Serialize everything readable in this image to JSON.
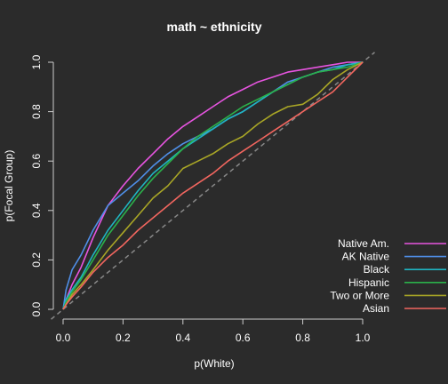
{
  "chart_data": {
    "type": "line",
    "title": "math ~ ethnicity",
    "xlabel": "p(White)",
    "ylabel": "p(Focal Group)",
    "xlim": [
      0,
      1
    ],
    "ylim": [
      0,
      1
    ],
    "x_ticks": [
      "0.0",
      "0.2",
      "0.4",
      "0.6",
      "0.8",
      "1.0"
    ],
    "y_ticks": [
      "0.0",
      "0.2",
      "0.4",
      "0.6",
      "0.8",
      "1.0"
    ],
    "legend_position": "bottom-right",
    "reference_line": {
      "style": "dashed",
      "color": "#888888",
      "from": [
        0,
        0
      ],
      "to": [
        1,
        1
      ]
    },
    "series": [
      {
        "name": "Native Am.",
        "color": "#e754e0",
        "points": [
          [
            0,
            0
          ],
          [
            0.01,
            0.04
          ],
          [
            0.03,
            0.1
          ],
          [
            0.06,
            0.17
          ],
          [
            0.1,
            0.29
          ],
          [
            0.15,
            0.42
          ],
          [
            0.2,
            0.5
          ],
          [
            0.25,
            0.57
          ],
          [
            0.3,
            0.63
          ],
          [
            0.35,
            0.69
          ],
          [
            0.4,
            0.74
          ],
          [
            0.45,
            0.78
          ],
          [
            0.5,
            0.82
          ],
          [
            0.55,
            0.86
          ],
          [
            0.6,
            0.89
          ],
          [
            0.65,
            0.92
          ],
          [
            0.7,
            0.94
          ],
          [
            0.75,
            0.96
          ],
          [
            0.8,
            0.97
          ],
          [
            0.85,
            0.98
          ],
          [
            0.9,
            0.99
          ],
          [
            0.95,
            1.0
          ],
          [
            1,
            1
          ]
        ]
      },
      {
        "name": "AK Native",
        "color": "#4f8fe8",
        "points": [
          [
            0,
            0
          ],
          [
            0.01,
            0.08
          ],
          [
            0.03,
            0.16
          ],
          [
            0.06,
            0.22
          ],
          [
            0.1,
            0.32
          ],
          [
            0.15,
            0.42
          ],
          [
            0.2,
            0.47
          ],
          [
            0.25,
            0.52
          ],
          [
            0.3,
            0.58
          ],
          [
            0.35,
            0.63
          ],
          [
            0.4,
            0.67
          ],
          [
            0.45,
            0.7
          ],
          [
            0.5,
            0.73
          ],
          [
            0.55,
            0.77
          ],
          [
            0.6,
            0.8
          ],
          [
            0.65,
            0.84
          ],
          [
            0.7,
            0.88
          ],
          [
            0.75,
            0.92
          ],
          [
            0.8,
            0.94
          ],
          [
            0.85,
            0.96
          ],
          [
            0.9,
            0.98
          ],
          [
            0.95,
            0.99
          ],
          [
            1,
            1
          ]
        ]
      },
      {
        "name": "Black",
        "color": "#1fb5c2",
        "points": [
          [
            0,
            0
          ],
          [
            0.01,
            0.04
          ],
          [
            0.03,
            0.08
          ],
          [
            0.06,
            0.13
          ],
          [
            0.1,
            0.22
          ],
          [
            0.15,
            0.32
          ],
          [
            0.2,
            0.4
          ],
          [
            0.25,
            0.48
          ],
          [
            0.3,
            0.55
          ],
          [
            0.35,
            0.6
          ],
          [
            0.4,
            0.65
          ],
          [
            0.45,
            0.69
          ],
          [
            0.5,
            0.73
          ],
          [
            0.55,
            0.77
          ],
          [
            0.6,
            0.8
          ],
          [
            0.65,
            0.84
          ],
          [
            0.7,
            0.88
          ],
          [
            0.75,
            0.91
          ],
          [
            0.8,
            0.94
          ],
          [
            0.85,
            0.96
          ],
          [
            0.9,
            0.97
          ],
          [
            0.95,
            0.99
          ],
          [
            1,
            1
          ]
        ]
      },
      {
        "name": "Hispanic",
        "color": "#2bb14a",
        "points": [
          [
            0,
            0
          ],
          [
            0.01,
            0.03
          ],
          [
            0.03,
            0.07
          ],
          [
            0.06,
            0.12
          ],
          [
            0.1,
            0.2
          ],
          [
            0.15,
            0.3
          ],
          [
            0.2,
            0.38
          ],
          [
            0.25,
            0.46
          ],
          [
            0.3,
            0.53
          ],
          [
            0.35,
            0.59
          ],
          [
            0.4,
            0.65
          ],
          [
            0.45,
            0.7
          ],
          [
            0.5,
            0.74
          ],
          [
            0.55,
            0.78
          ],
          [
            0.6,
            0.82
          ],
          [
            0.65,
            0.85
          ],
          [
            0.7,
            0.88
          ],
          [
            0.75,
            0.91
          ],
          [
            0.8,
            0.94
          ],
          [
            0.85,
            0.96
          ],
          [
            0.9,
            0.97
          ],
          [
            0.95,
            0.98
          ],
          [
            1,
            1
          ]
        ]
      },
      {
        "name": "Two or More",
        "color": "#a9a626",
        "points": [
          [
            0,
            0
          ],
          [
            0.01,
            0.02
          ],
          [
            0.03,
            0.06
          ],
          [
            0.06,
            0.1
          ],
          [
            0.1,
            0.16
          ],
          [
            0.15,
            0.24
          ],
          [
            0.2,
            0.31
          ],
          [
            0.25,
            0.38
          ],
          [
            0.3,
            0.45
          ],
          [
            0.35,
            0.5
          ],
          [
            0.4,
            0.57
          ],
          [
            0.45,
            0.6
          ],
          [
            0.5,
            0.63
          ],
          [
            0.55,
            0.67
          ],
          [
            0.6,
            0.7
          ],
          [
            0.65,
            0.75
          ],
          [
            0.7,
            0.79
          ],
          [
            0.75,
            0.82
          ],
          [
            0.8,
            0.83
          ],
          [
            0.85,
            0.87
          ],
          [
            0.9,
            0.93
          ],
          [
            0.95,
            0.97
          ],
          [
            1,
            1
          ]
        ]
      },
      {
        "name": "Asian",
        "color": "#f2665f",
        "points": [
          [
            0,
            0
          ],
          [
            0.01,
            0.02
          ],
          [
            0.03,
            0.05
          ],
          [
            0.06,
            0.09
          ],
          [
            0.1,
            0.15
          ],
          [
            0.15,
            0.21
          ],
          [
            0.2,
            0.26
          ],
          [
            0.25,
            0.32
          ],
          [
            0.3,
            0.37
          ],
          [
            0.35,
            0.42
          ],
          [
            0.4,
            0.47
          ],
          [
            0.45,
            0.51
          ],
          [
            0.5,
            0.55
          ],
          [
            0.55,
            0.6
          ],
          [
            0.6,
            0.64
          ],
          [
            0.65,
            0.68
          ],
          [
            0.7,
            0.72
          ],
          [
            0.75,
            0.76
          ],
          [
            0.8,
            0.8
          ],
          [
            0.85,
            0.84
          ],
          [
            0.9,
            0.88
          ],
          [
            0.95,
            0.94
          ],
          [
            1,
            1
          ]
        ]
      }
    ]
  }
}
